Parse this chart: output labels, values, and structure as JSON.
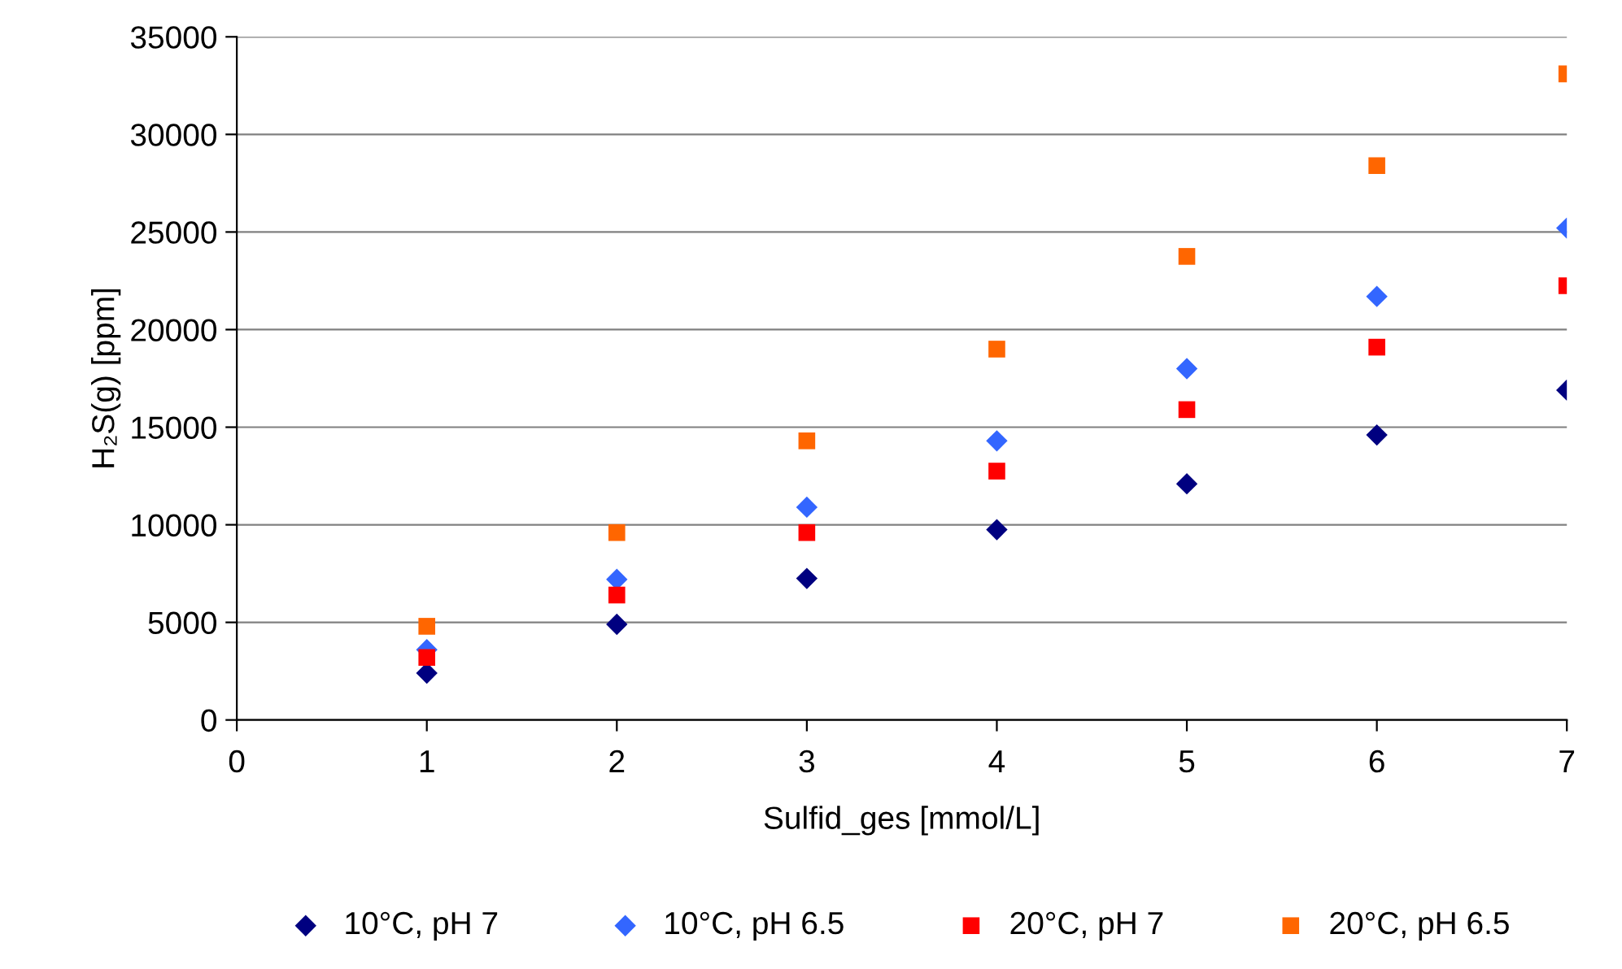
{
  "chart_data": {
    "type": "scatter",
    "xlabel": "Sulfid_ges [mmol/L]",
    "ylabel": "H₂S(g) [ppm]",
    "x": [
      1,
      2,
      3,
      4,
      5,
      6,
      7
    ],
    "xlim": [
      0,
      7
    ],
    "xticks": [
      0,
      1,
      2,
      3,
      4,
      5,
      6,
      7
    ],
    "ylim": [
      0,
      35000
    ],
    "yticks": [
      0,
      5000,
      10000,
      15000,
      20000,
      25000,
      30000,
      35000
    ],
    "grid": "y",
    "legend": "bottom",
    "series": [
      {
        "name": "10°C, pH 7",
        "color": "#000080",
        "marker": "diamond",
        "values": [
          2400,
          4900,
          7250,
          9750,
          12100,
          14600,
          16900
        ]
      },
      {
        "name": "10°C, pH 6.5",
        "color": "#3366ff",
        "marker": "diamond",
        "values": [
          3600,
          7200,
          10900,
          14300,
          18000,
          21700,
          25200
        ]
      },
      {
        "name": "20°C, pH 7",
        "color": "#ff0000",
        "marker": "square",
        "values": [
          3200,
          6400,
          9600,
          12750,
          15900,
          19100,
          22250
        ]
      },
      {
        "name": "20°C, pH 6.5",
        "color": "#ff6600",
        "marker": "square",
        "values": [
          4800,
          9600,
          14300,
          19000,
          23750,
          28400,
          33100
        ]
      }
    ]
  }
}
